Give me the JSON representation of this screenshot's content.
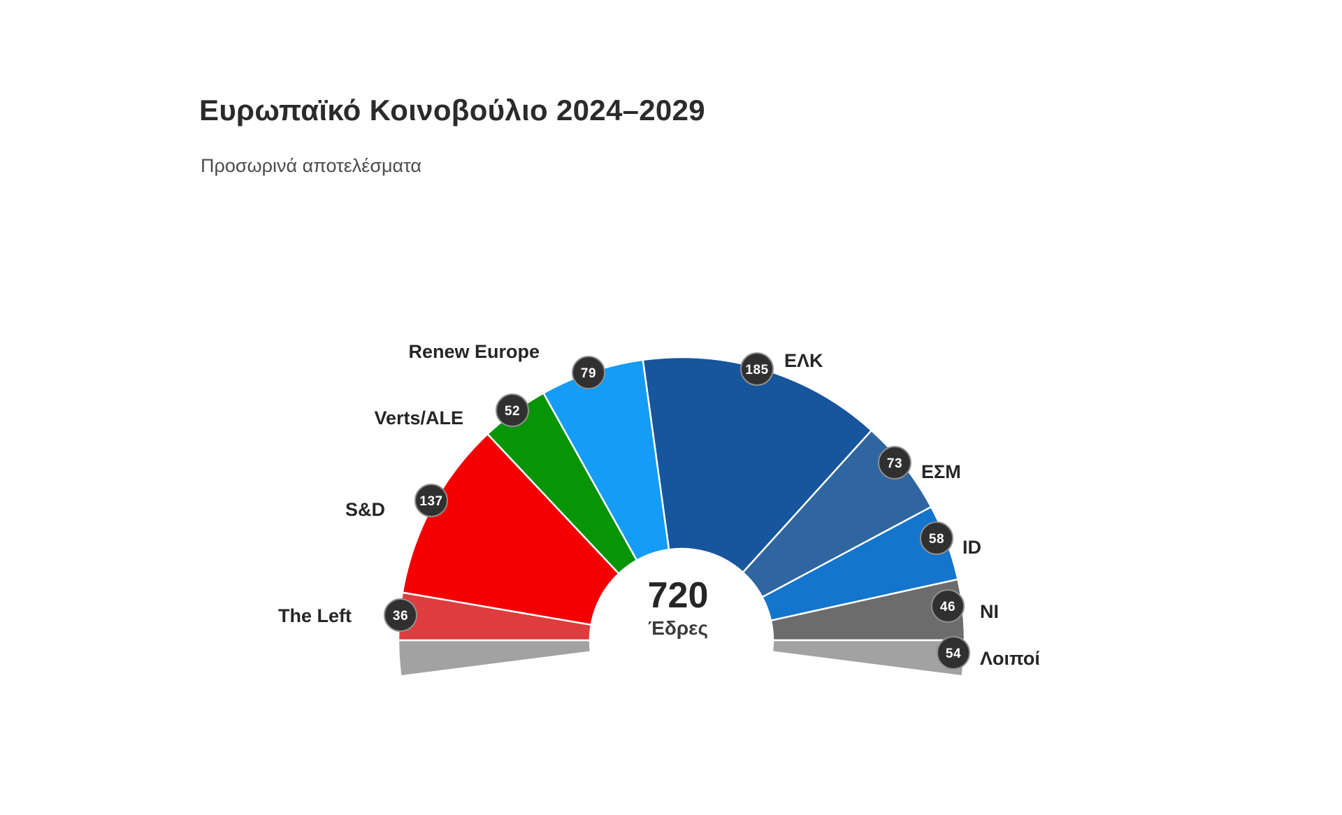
{
  "chart_data": {
    "type": "pie",
    "subtype": "hemicycle-parliament",
    "title": "Ευρωπαϊκό Κοινοβούλιο 2024–2029",
    "subtitle": "Προσωρινά αποτελέσματα",
    "total_seats": 720,
    "center": {
      "value": "720",
      "caption": "Έδρες"
    },
    "layout_hints": {
      "arc": "semicircle, groups left to right; unattached 'others' seats split on both lower ends below the horizontal",
      "legend": "none, labels with seat badges around the outer rim",
      "badge_style": "dark circle with white seat count"
    },
    "groups": [
      {
        "key": "the-left",
        "name": "The Left",
        "seats": 36,
        "color": "#dd3d3d"
      },
      {
        "key": "sd",
        "name": "S&D",
        "seats": 137,
        "color": "#f40001"
      },
      {
        "key": "verts-ale",
        "name": "Verts/ALE",
        "seats": 52,
        "color": "#079407"
      },
      {
        "key": "renew-europe",
        "name": "Renew Europe",
        "seats": 79,
        "color": "#149cf6"
      },
      {
        "key": "epp-elk",
        "name": "ΕΛΚ",
        "seats": 185,
        "color": "#17559d"
      },
      {
        "key": "ecr-esm",
        "name": "ΕΣΜ",
        "seats": 73,
        "color": "#2f66a0"
      },
      {
        "key": "id",
        "name": "ID",
        "seats": 58,
        "color": "#1475cd"
      },
      {
        "key": "ni",
        "name": "NI",
        "seats": 46,
        "color": "#6c6c6c"
      },
      {
        "key": "others-loipoi",
        "name": "Λοιποί",
        "seats": 54,
        "color": "#a2a2a2",
        "split_ends": true
      }
    ]
  }
}
